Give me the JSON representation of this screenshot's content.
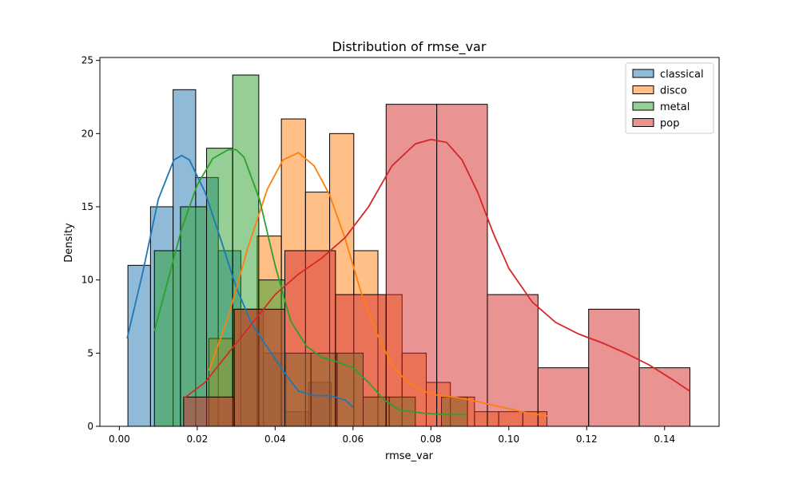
{
  "chart_data": {
    "type": "histogram",
    "title": "Distribution of rmse_var",
    "xlabel": "rmse_var",
    "ylabel": "Density",
    "xlim": [
      -0.005,
      0.154
    ],
    "ylim": [
      0,
      25.2
    ],
    "xticks": [
      0.0,
      0.02,
      0.04,
      0.06,
      0.08,
      0.1,
      0.12,
      0.14
    ],
    "xtick_labels": [
      "0.00",
      "0.02",
      "0.04",
      "0.06",
      "0.08",
      "0.10",
      "0.12",
      "0.14"
    ],
    "yticks": [
      0,
      5,
      10,
      15,
      20,
      25
    ],
    "ytick_labels": [
      "0",
      "5",
      "10",
      "15",
      "20",
      "25"
    ],
    "grid": false,
    "legend_position": "top-right",
    "series": [
      {
        "name": "classical",
        "color": "#1f77b4",
        "bin_edges": [
          0.0022,
          0.008,
          0.0138,
          0.0196,
          0.0254,
          0.0312,
          0.037,
          0.0428,
          0.0486,
          0.0544,
          0.0602
        ],
        "values": [
          11,
          15,
          23,
          17,
          12,
          8,
          5,
          1,
          3,
          0
        ],
        "kde_x": [
          0.002,
          0.006,
          0.01,
          0.014,
          0.016,
          0.018,
          0.022,
          0.026,
          0.03,
          0.034,
          0.038,
          0.042,
          0.046,
          0.05,
          0.054,
          0.058,
          0.06
        ],
        "kde_y": [
          6.0,
          10.5,
          15.5,
          18.2,
          18.5,
          18.2,
          16.0,
          12.8,
          9.5,
          7.0,
          5.4,
          3.8,
          2.4,
          2.1,
          2.1,
          1.8,
          1.3
        ]
      },
      {
        "name": "disco",
        "color": "#ff7f0e",
        "bin_edges": [
          0.023,
          0.0292,
          0.0354,
          0.0416,
          0.0478,
          0.054,
          0.0602,
          0.0664,
          0.0726,
          0.0788,
          0.085,
          0.0912,
          0.0974,
          0.1036,
          0.1098
        ],
        "values": [
          6,
          8,
          13,
          21,
          16,
          20,
          12,
          9,
          5,
          3,
          2,
          1,
          1,
          1
        ],
        "kde_x": [
          0.023,
          0.028,
          0.033,
          0.038,
          0.042,
          0.046,
          0.05,
          0.054,
          0.058,
          0.062,
          0.066,
          0.07,
          0.074,
          0.078,
          0.082,
          0.086,
          0.09,
          0.095,
          0.1,
          0.105,
          0.11
        ],
        "kde_y": [
          3.8,
          7.5,
          12.2,
          16.2,
          18.2,
          18.7,
          17.8,
          15.8,
          12.8,
          9.2,
          6.4,
          4.2,
          3.0,
          2.4,
          2.1,
          2.0,
          1.8,
          1.5,
          1.2,
          0.9,
          0.7
        ]
      },
      {
        "name": "metal",
        "color": "#2ca02c",
        "bin_edges": [
          0.009,
          0.0157,
          0.0224,
          0.0291,
          0.0358,
          0.0425,
          0.0492,
          0.0559,
          0.0626,
          0.0693,
          0.076,
          0.0827,
          0.0894
        ],
        "values": [
          12,
          15,
          19,
          24,
          10,
          5,
          5,
          5,
          2,
          2,
          0,
          2
        ],
        "kde_x": [
          0.009,
          0.012,
          0.016,
          0.02,
          0.024,
          0.028,
          0.03,
          0.032,
          0.036,
          0.04,
          0.044,
          0.048,
          0.052,
          0.056,
          0.06,
          0.064,
          0.068,
          0.072,
          0.078,
          0.084,
          0.089
        ],
        "kde_y": [
          6.5,
          9.5,
          13.5,
          16.5,
          18.3,
          18.9,
          18.9,
          18.4,
          15.5,
          11.0,
          7.2,
          5.5,
          4.7,
          4.4,
          4.0,
          3.0,
          1.8,
          1.1,
          0.9,
          0.8,
          0.8
        ]
      },
      {
        "name": "pop",
        "color": "#d62728",
        "bin_edges": [
          0.0165,
          0.0295,
          0.0425,
          0.0555,
          0.0685,
          0.0815,
          0.0945,
          0.1075,
          0.1205,
          0.1335,
          0.1465
        ],
        "values": [
          2,
          8,
          12,
          9,
          22,
          22,
          9,
          4,
          8,
          4
        ],
        "kde_x": [
          0.0165,
          0.022,
          0.028,
          0.034,
          0.04,
          0.046,
          0.052,
          0.058,
          0.064,
          0.07,
          0.076,
          0.08,
          0.084,
          0.088,
          0.092,
          0.096,
          0.1,
          0.106,
          0.112,
          0.118,
          0.124,
          0.13,
          0.136,
          0.142,
          0.1465
        ],
        "kde_y": [
          1.9,
          3.0,
          5.0,
          7.0,
          9.0,
          10.4,
          11.5,
          12.9,
          15.0,
          17.8,
          19.3,
          19.6,
          19.4,
          18.2,
          16.0,
          13.2,
          10.8,
          8.5,
          7.1,
          6.3,
          5.7,
          5.0,
          4.2,
          3.2,
          2.4
        ]
      }
    ]
  }
}
